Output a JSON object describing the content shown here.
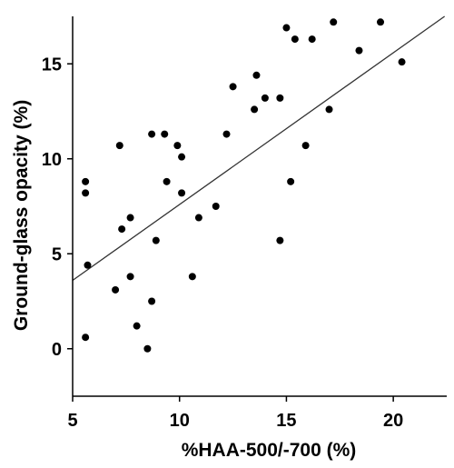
{
  "chart_data": {
    "type": "scatter",
    "title": "",
    "xlabel": "%HAA-500/-700 (%)",
    "ylabel": "Ground-glass opacity (%)",
    "xlim": [
      5,
      22.5
    ],
    "ylim": [
      -2.5,
      17.5
    ],
    "xticks": [
      5,
      10,
      15,
      20
    ],
    "yticks": [
      0,
      5,
      10,
      15
    ],
    "grid": false,
    "legend": "none",
    "point_color": "#000000",
    "line_color": "#333333",
    "series": [
      {
        "points": [
          [
            5.6,
            8.8
          ],
          [
            5.6,
            8.2
          ],
          [
            5.7,
            4.4
          ],
          [
            5.6,
            0.6
          ],
          [
            7.0,
            3.1
          ],
          [
            7.2,
            10.7
          ],
          [
            7.3,
            6.3
          ],
          [
            7.7,
            6.9
          ],
          [
            7.7,
            3.8
          ],
          [
            8.0,
            1.2
          ],
          [
            8.5,
            0.0
          ],
          [
            8.7,
            11.3
          ],
          [
            8.7,
            2.5
          ],
          [
            8.9,
            5.7
          ],
          [
            9.3,
            11.3
          ],
          [
            9.4,
            8.8
          ],
          [
            9.9,
            10.7
          ],
          [
            10.1,
            10.1
          ],
          [
            10.1,
            8.2
          ],
          [
            10.6,
            3.8
          ],
          [
            10.9,
            6.9
          ],
          [
            11.7,
            7.5
          ],
          [
            12.2,
            11.3
          ],
          [
            12.5,
            13.8
          ],
          [
            13.5,
            12.6
          ],
          [
            13.6,
            14.4
          ],
          [
            14.0,
            13.2
          ],
          [
            14.7,
            13.2
          ],
          [
            14.7,
            5.7
          ],
          [
            15.0,
            16.9
          ],
          [
            15.2,
            8.8
          ],
          [
            15.4,
            16.3
          ],
          [
            15.9,
            10.7
          ],
          [
            16.2,
            16.3
          ],
          [
            17.0,
            12.6
          ],
          [
            17.2,
            17.2
          ],
          [
            18.4,
            15.7
          ],
          [
            19.4,
            17.2
          ],
          [
            20.4,
            15.1
          ]
        ]
      }
    ],
    "fit_line": {
      "x": [
        5,
        22.4
      ],
      "y": [
        3.6,
        17.5
      ]
    }
  }
}
